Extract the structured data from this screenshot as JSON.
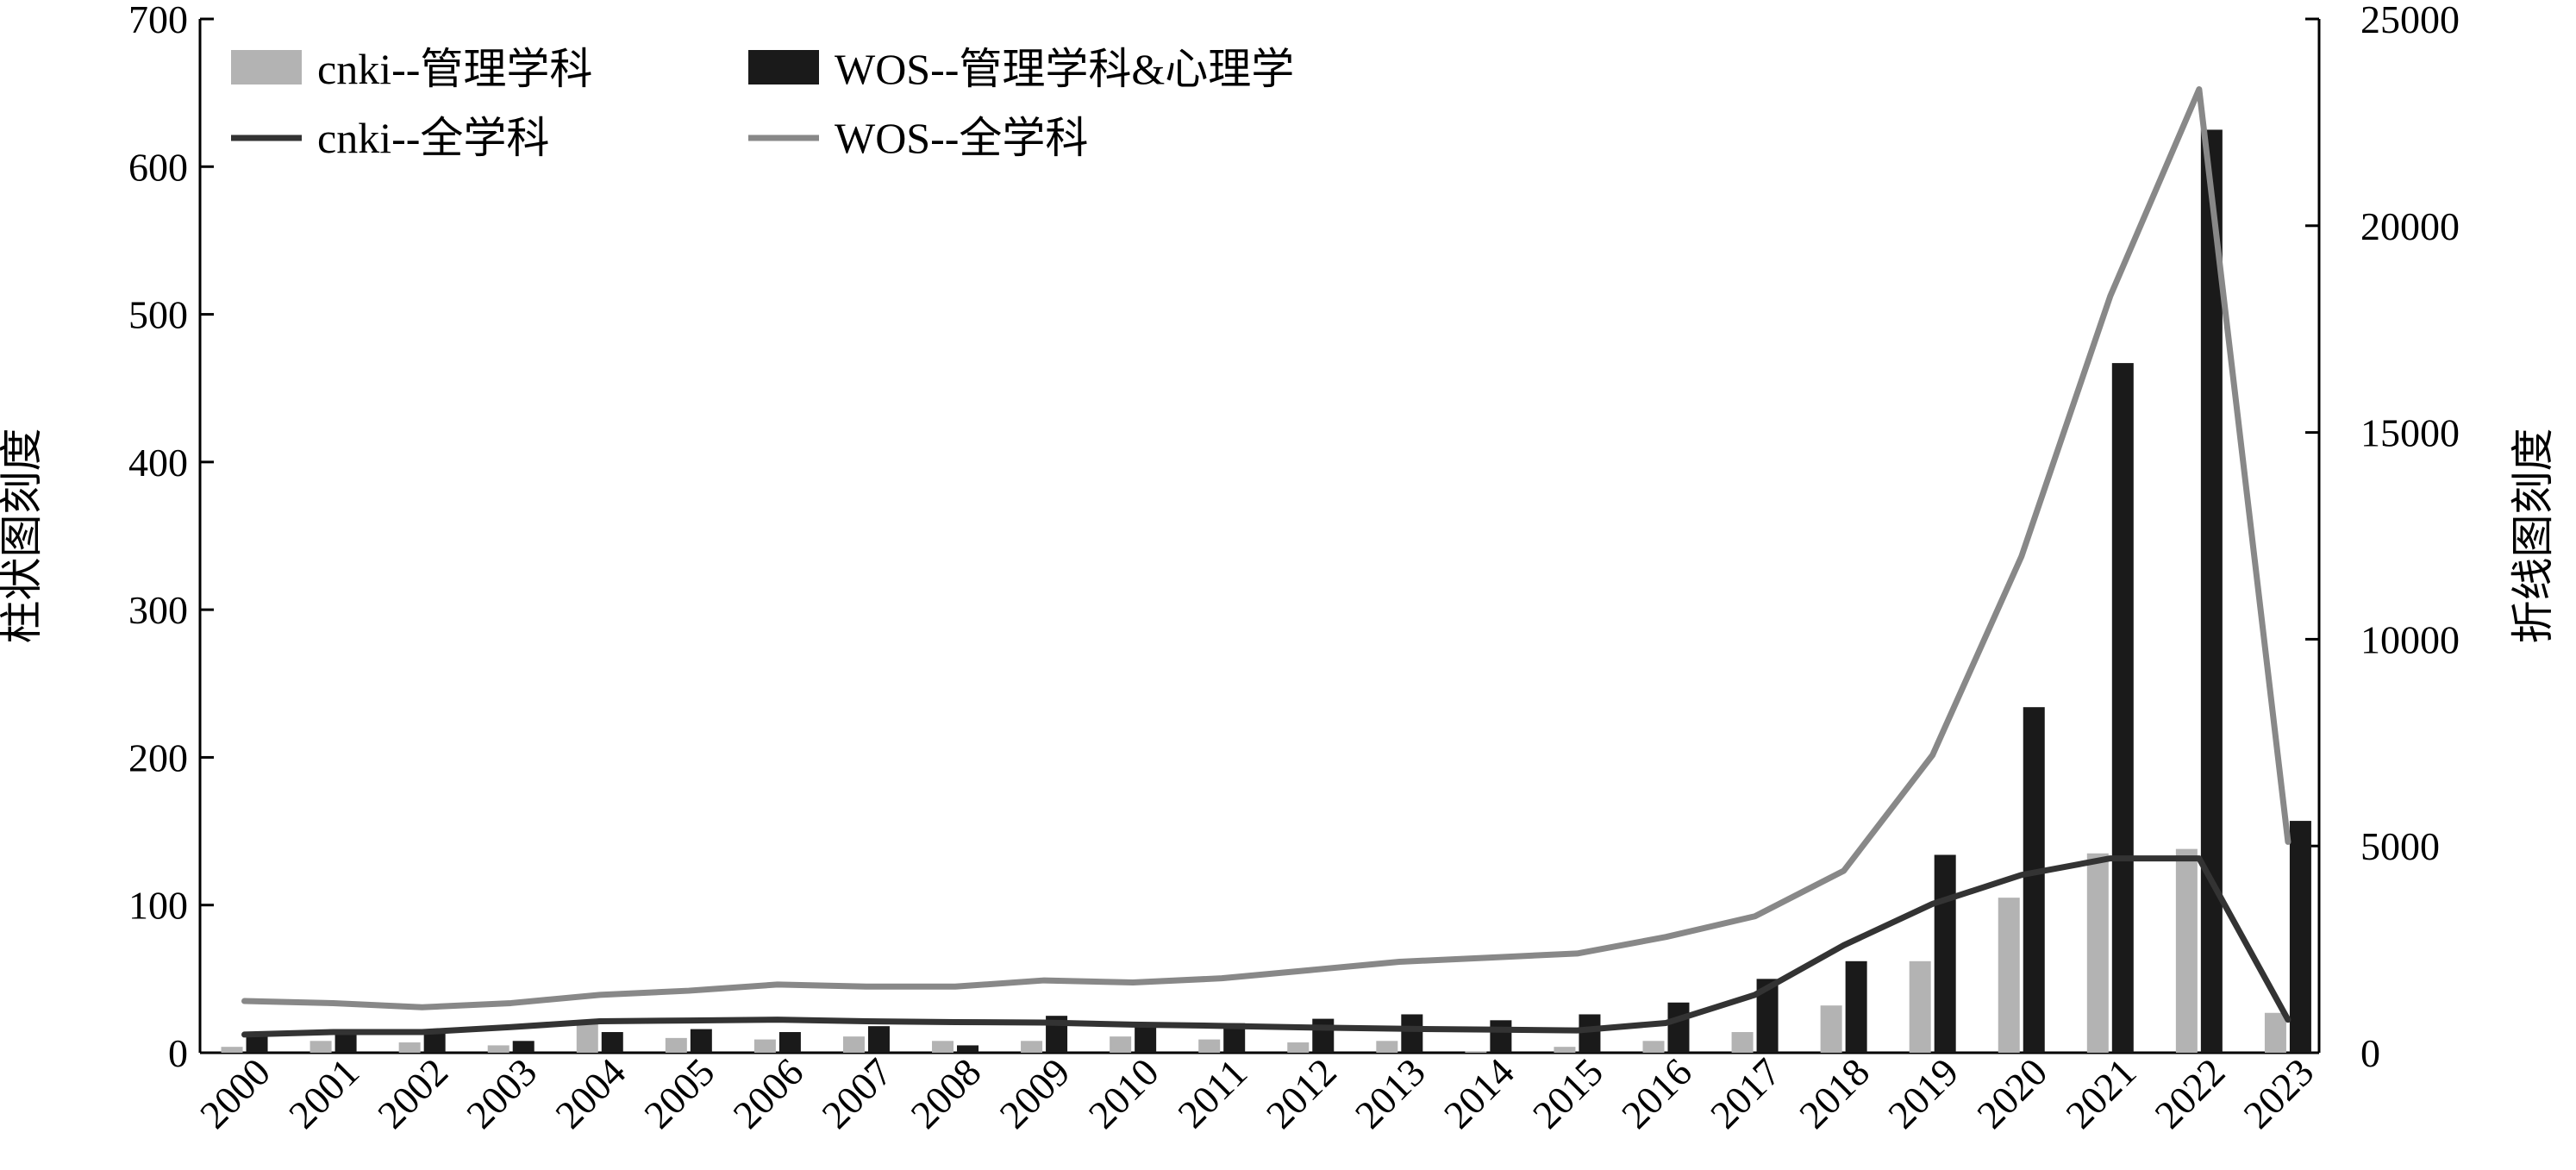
{
  "chart_data": {
    "type": "bar+line",
    "categories": [
      "2000",
      "2001",
      "2002",
      "2003",
      "2004",
      "2005",
      "2006",
      "2007",
      "2008",
      "2009",
      "2010",
      "2011",
      "2012",
      "2013",
      "2014",
      "2015",
      "2016",
      "2017",
      "2018",
      "2019",
      "2020",
      "2021",
      "2022",
      "2023"
    ],
    "bar_series": [
      {
        "name": "cnki--管理学科",
        "color": "#b3b3b3",
        "values": [
          4,
          8,
          7,
          5,
          20,
          10,
          9,
          11,
          8,
          8,
          11,
          9,
          7,
          8,
          1,
          4,
          8,
          14,
          32,
          62,
          105,
          135,
          138,
          27
        ]
      },
      {
        "name": "WOS--管理学科&心理学",
        "color": "#1a1a1a",
        "values": [
          14,
          14,
          14,
          8,
          14,
          16,
          14,
          18,
          5,
          25,
          18,
          20,
          23,
          26,
          22,
          26,
          34,
          50,
          62,
          134,
          234,
          467,
          625,
          157
        ]
      }
    ],
    "line_series": [
      {
        "name": "cnki--全学科",
        "color": "#333333",
        "values": [
          440,
          500,
          500,
          620,
          760,
          780,
          800,
          760,
          740,
          730,
          680,
          650,
          610,
          580,
          560,
          540,
          720,
          1400,
          2600,
          3600,
          4300,
          4700,
          4700,
          800
        ]
      },
      {
        "name": "WOS--全学科",
        "color": "#888888",
        "values": [
          1250,
          1200,
          1100,
          1200,
          1400,
          1500,
          1650,
          1600,
          1600,
          1750,
          1700,
          1800,
          2000,
          2200,
          2300,
          2400,
          2800,
          3300,
          4400,
          7200,
          12000,
          18300,
          23300,
          5100
        ]
      }
    ],
    "y_left": {
      "label": "柱状图刻度",
      "min": 0,
      "max": 700,
      "ticks": [
        0,
        100,
        200,
        300,
        400,
        500,
        600,
        700
      ]
    },
    "y_right": {
      "label": "折线图刻度",
      "min": 0,
      "max": 25000,
      "ticks": [
        0,
        5000,
        10000,
        15000,
        20000,
        25000
      ]
    },
    "legend_position": "top-left",
    "grid": false
  }
}
